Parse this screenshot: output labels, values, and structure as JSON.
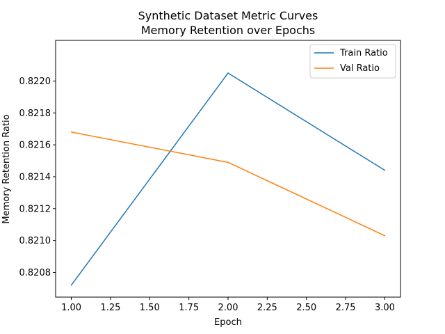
{
  "chart_data": {
    "type": "line",
    "title": "Synthetic Dataset Metric Curves",
    "subtitle": "Memory Retention over Epochs",
    "xlabel": "Epoch",
    "ylabel": "Memory Retention Ratio",
    "x": [
      1.0,
      2.0,
      3.0
    ],
    "series": [
      {
        "name": "Train Ratio",
        "color": "#1f77b4",
        "values": [
          0.82072,
          0.82205,
          0.82144
        ]
      },
      {
        "name": "Val Ratio",
        "color": "#ff7f0e",
        "values": [
          0.82168,
          0.82149,
          0.82103
        ]
      }
    ],
    "xlim": [
      0.9,
      3.1
    ],
    "ylim": [
      0.820645,
      0.822255
    ],
    "x_ticks": [
      1.0,
      1.25,
      1.5,
      1.75,
      2.0,
      2.25,
      2.5,
      2.75,
      3.0
    ],
    "x_tick_labels": [
      "1.00",
      "1.25",
      "1.50",
      "1.75",
      "2.00",
      "2.25",
      "2.50",
      "2.75",
      "3.00"
    ],
    "y_ticks": [
      0.8208,
      0.821,
      0.8212,
      0.8214,
      0.8216,
      0.8218,
      0.822
    ],
    "y_tick_labels": [
      "0.8208",
      "0.8210",
      "0.8212",
      "0.8214",
      "0.8216",
      "0.8218",
      "0.8220"
    ],
    "grid": false,
    "legend_position": "top-right"
  }
}
